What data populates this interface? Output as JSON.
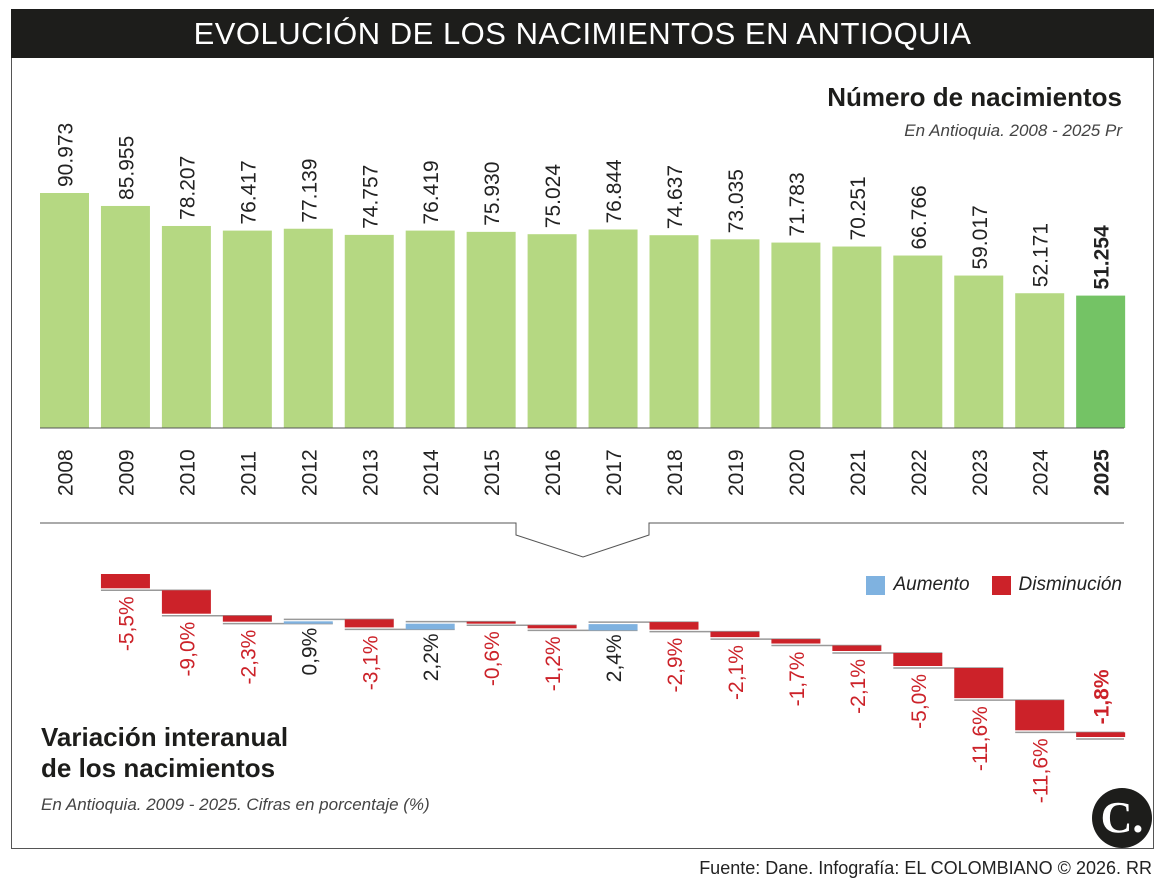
{
  "title": "EVOLUCIÓN DE LOS NACIMIENTOS EN ANTIOQUIA",
  "footer": "Fuente: Dane. Infografía: EL COLOMBIANO © 2026. RR",
  "logo_text": "C.",
  "chart_data": [
    {
      "type": "bar",
      "title": "Número de nacimientos",
      "subtitle": "En Antioquia. 2008 - 2025 Pr",
      "categories": [
        "2008",
        "2009",
        "2010",
        "2011",
        "2012",
        "2013",
        "2014",
        "2015",
        "2016",
        "2017",
        "2018",
        "2019",
        "2020",
        "2021",
        "2022",
        "2023",
        "2024",
        "2025"
      ],
      "values": [
        90973,
        85955,
        78207,
        76417,
        77139,
        74757,
        76419,
        75930,
        75024,
        76844,
        74637,
        73035,
        71783,
        70251,
        66766,
        59017,
        52171,
        51254
      ],
      "labels": [
        "90.973",
        "85.955",
        "78.207",
        "76.417",
        "77.139",
        "74.757",
        "76.419",
        "75.930",
        "75.024",
        "76.844",
        "74.637",
        "73.035",
        "71.783",
        "70.251",
        "66.766",
        "59.017",
        "52.171",
        "51.254"
      ],
      "highlight": "2025",
      "colors": {
        "bar": "#b5d882",
        "highlight": "#74c365"
      }
    },
    {
      "type": "waterfall",
      "title": "Variación interanual de los nacimientos",
      "title_lines": [
        "Variación interanual",
        "de los nacimientos"
      ],
      "subtitle": "En Antioquia. 2009 - 2025. Cifras en porcentaje (%)",
      "categories": [
        "2009",
        "2010",
        "2011",
        "2012",
        "2013",
        "2014",
        "2015",
        "2016",
        "2017",
        "2018",
        "2019",
        "2020",
        "2021",
        "2022",
        "2023",
        "2024",
        "2025"
      ],
      "values": [
        -5.5,
        -9.0,
        -2.3,
        0.9,
        -3.1,
        2.2,
        -0.6,
        -1.2,
        2.4,
        -2.9,
        -2.1,
        -1.7,
        -2.1,
        -5.0,
        -11.6,
        -11.6,
        -1.8
      ],
      "labels": [
        "-5,5%",
        "-9,0%",
        "-2,3%",
        "0,9%",
        "-3,1%",
        "2,2%",
        "-0,6%",
        "-1,2%",
        "2,4%",
        "-2,9%",
        "-2,1%",
        "-1,7%",
        "-2,1%",
        "-5,0%",
        "-11,6%",
        "-11,6%",
        "-1,8%"
      ],
      "legend": [
        {
          "label": "Aumento",
          "color": "#7fb2e0"
        },
        {
          "label": "Disminución",
          "color": "#cc2229"
        }
      ],
      "legend_placement": "top-right"
    }
  ]
}
